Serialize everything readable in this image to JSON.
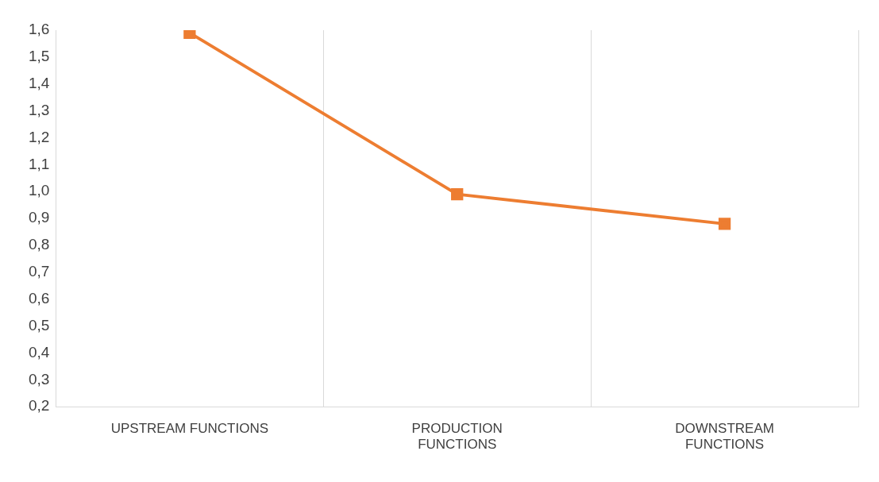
{
  "chart_data": {
    "type": "line",
    "categories": [
      "UPSTREAM FUNCTIONS",
      "PRODUCTION FUNCTIONS",
      "DOWNSTREAM FUNCTIONS"
    ],
    "series": [
      {
        "color": "#ed7d31",
        "values": [
          1.59,
          0.99,
          0.88
        ]
      }
    ],
    "ylim": [
      0.2,
      1.6
    ],
    "yticks": [
      {
        "value": 0.2,
        "label": "0,2"
      },
      {
        "value": 0.3,
        "label": "0,3"
      },
      {
        "value": 0.4,
        "label": "0,4"
      },
      {
        "value": 0.5,
        "label": "0,5"
      },
      {
        "value": 0.6,
        "label": "0,6"
      },
      {
        "value": 0.7,
        "label": "0,7"
      },
      {
        "value": 0.8,
        "label": "0,8"
      },
      {
        "value": 0.9,
        "label": "0,9"
      },
      {
        "value": 1.0,
        "label": "1,0"
      },
      {
        "value": 1.1,
        "label": "1,1"
      },
      {
        "value": 1.2,
        "label": "1,2"
      },
      {
        "value": 1.3,
        "label": "1,3"
      },
      {
        "value": 1.4,
        "label": "1,4"
      },
      {
        "value": 1.5,
        "label": "1,5"
      },
      {
        "value": 1.6,
        "label": "1,6"
      }
    ],
    "grid": "x",
    "legend": false,
    "marker": "square",
    "line_style": "solid"
  }
}
